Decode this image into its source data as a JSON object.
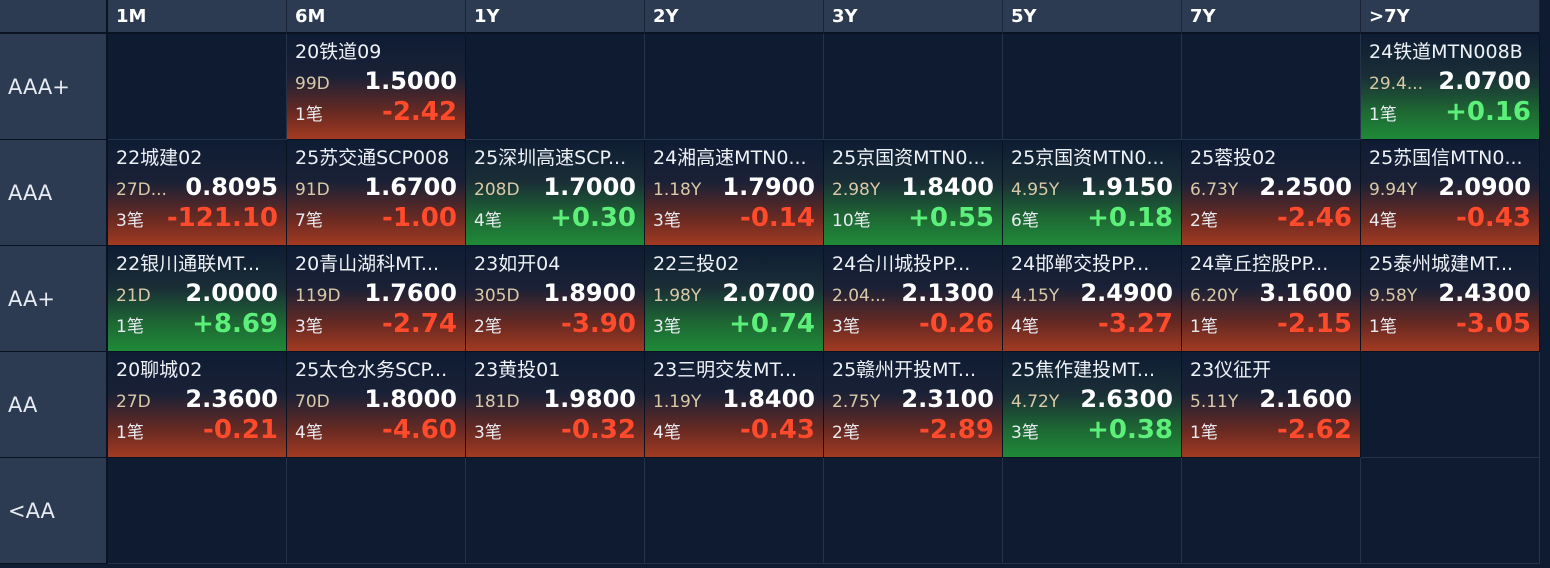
{
  "columns": [
    "1M",
    "6M",
    "1Y",
    "2Y",
    "3Y",
    "5Y",
    "7Y",
    ">7Y"
  ],
  "colors": {
    "up": "#36e05a",
    "down": "#ff4a2c",
    "header_bg": "#2c3a52",
    "grid_bg": "#0f1b30"
  },
  "rows": [
    {
      "label": "AAA+",
      "cells": [
        null,
        {
          "name": "20铁道09",
          "term": "99D",
          "price": "1.5000",
          "trades": "1笔",
          "change": "-2.42",
          "dir": "down"
        },
        null,
        null,
        null,
        null,
        null,
        {
          "name": "24铁道MTN008B",
          "term": "29.4...",
          "price": "2.0700",
          "trades": "1笔",
          "change": "+0.16",
          "dir": "up"
        }
      ]
    },
    {
      "label": "AAA",
      "cells": [
        {
          "name": "22城建02",
          "term": "27D...",
          "price": "0.8095",
          "trades": "3笔",
          "change": "-121.10",
          "dir": "down"
        },
        {
          "name": "25苏交通SCP008",
          "term": "91D",
          "price": "1.6700",
          "trades": "7笔",
          "change": "-1.00",
          "dir": "down"
        },
        {
          "name": "25深圳高速SCP...",
          "term": "208D",
          "price": "1.7000",
          "trades": "4笔",
          "change": "+0.30",
          "dir": "up"
        },
        {
          "name": "24湘高速MTN0...",
          "term": "1.18Y",
          "price": "1.7900",
          "trades": "3笔",
          "change": "-0.14",
          "dir": "down"
        },
        {
          "name": "25京国资MTN0...",
          "term": "2.98Y",
          "price": "1.8400",
          "trades": "10笔",
          "change": "+0.55",
          "dir": "up"
        },
        {
          "name": "25京国资MTN0...",
          "term": "4.95Y",
          "price": "1.9150",
          "trades": "6笔",
          "change": "+0.18",
          "dir": "up"
        },
        {
          "name": "25蓉投02",
          "term": "6.73Y",
          "price": "2.2500",
          "trades": "2笔",
          "change": "-2.46",
          "dir": "down"
        },
        {
          "name": "25苏国信MTN0...",
          "term": "9.94Y",
          "price": "2.0900",
          "trades": "4笔",
          "change": "-0.43",
          "dir": "down"
        }
      ]
    },
    {
      "label": "AA+",
      "cells": [
        {
          "name": "22银川通联MT...",
          "term": "21D",
          "price": "2.0000",
          "trades": "1笔",
          "change": "+8.69",
          "dir": "up"
        },
        {
          "name": "20青山湖科MT...",
          "term": "119D",
          "price": "1.7600",
          "trades": "3笔",
          "change": "-2.74",
          "dir": "down"
        },
        {
          "name": "23如开04",
          "term": "305D",
          "price": "1.8900",
          "trades": "2笔",
          "change": "-3.90",
          "dir": "down"
        },
        {
          "name": "22三投02",
          "term": "1.98Y",
          "price": "2.0700",
          "trades": "3笔",
          "change": "+0.74",
          "dir": "up"
        },
        {
          "name": "24合川城投PP...",
          "term": "2.04...",
          "price": "2.1300",
          "trades": "3笔",
          "change": "-0.26",
          "dir": "down"
        },
        {
          "name": "24邯郸交投PP...",
          "term": "4.15Y",
          "price": "2.4900",
          "trades": "4笔",
          "change": "-3.27",
          "dir": "down"
        },
        {
          "name": "24章丘控股PP...",
          "term": "6.20Y",
          "price": "3.1600",
          "trades": "1笔",
          "change": "-2.15",
          "dir": "down"
        },
        {
          "name": "25泰州城建MT...",
          "term": "9.58Y",
          "price": "2.4300",
          "trades": "1笔",
          "change": "-3.05",
          "dir": "down"
        }
      ]
    },
    {
      "label": "AA",
      "cells": [
        {
          "name": "20聊城02",
          "term": "27D",
          "price": "2.3600",
          "trades": "1笔",
          "change": "-0.21",
          "dir": "down"
        },
        {
          "name": "25太仓水务SCP...",
          "term": "70D",
          "price": "1.8000",
          "trades": "4笔",
          "change": "-4.60",
          "dir": "down"
        },
        {
          "name": "23黄投01",
          "term": "181D",
          "price": "1.9800",
          "trades": "3笔",
          "change": "-0.32",
          "dir": "down"
        },
        {
          "name": "23三明交发MT...",
          "term": "1.19Y",
          "price": "1.8400",
          "trades": "4笔",
          "change": "-0.43",
          "dir": "down"
        },
        {
          "name": "25赣州开投MT...",
          "term": "2.75Y",
          "price": "2.3100",
          "trades": "2笔",
          "change": "-2.89",
          "dir": "down"
        },
        {
          "name": "25焦作建投MT...",
          "term": "4.72Y",
          "price": "2.6300",
          "trades": "3笔",
          "change": "+0.38",
          "dir": "up"
        },
        {
          "name": "23仪征开",
          "term": "5.11Y",
          "price": "2.1600",
          "trades": "1笔",
          "change": "-2.62",
          "dir": "down"
        },
        null
      ]
    },
    {
      "label": "<AA",
      "cells": [
        null,
        null,
        null,
        null,
        null,
        null,
        null,
        null
      ]
    }
  ]
}
